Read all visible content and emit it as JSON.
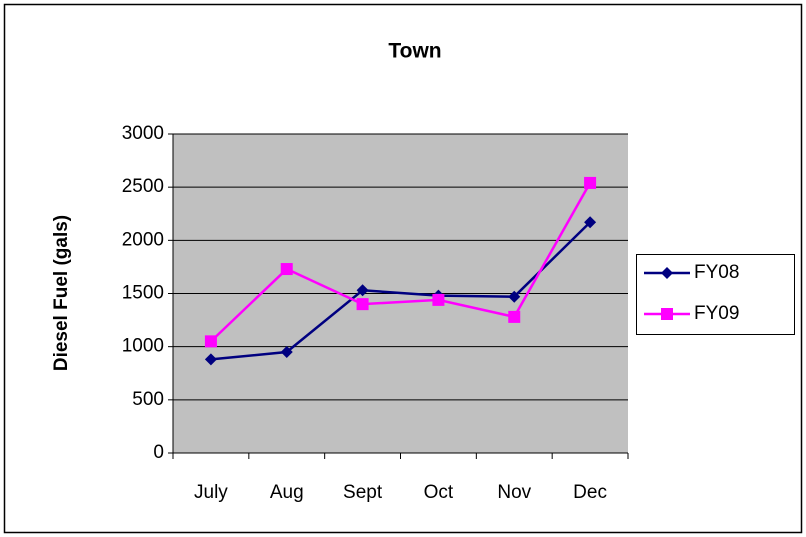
{
  "chart_data": {
    "type": "line",
    "title": "Town",
    "y_label": "Diesel Fuel (gals)",
    "categories": [
      "July",
      "Aug",
      "Sept",
      "Oct",
      "Nov",
      "Dec"
    ],
    "series": [
      {
        "name": "FY08",
        "color": "#000080",
        "marker": "diamond",
        "values": [
          880,
          950,
          1530,
          1480,
          1470,
          2170
        ]
      },
      {
        "name": "FY09",
        "color": "#FF00FF",
        "marker": "square",
        "values": [
          1050,
          1730,
          1400,
          1440,
          1280,
          2540
        ]
      }
    ],
    "ylim": [
      0,
      3000
    ],
    "yticks": [
      0,
      500,
      1000,
      1500,
      2000,
      2500,
      3000
    ],
    "grid": true,
    "legend": "right",
    "plot_background": "#C0C0C0"
  }
}
